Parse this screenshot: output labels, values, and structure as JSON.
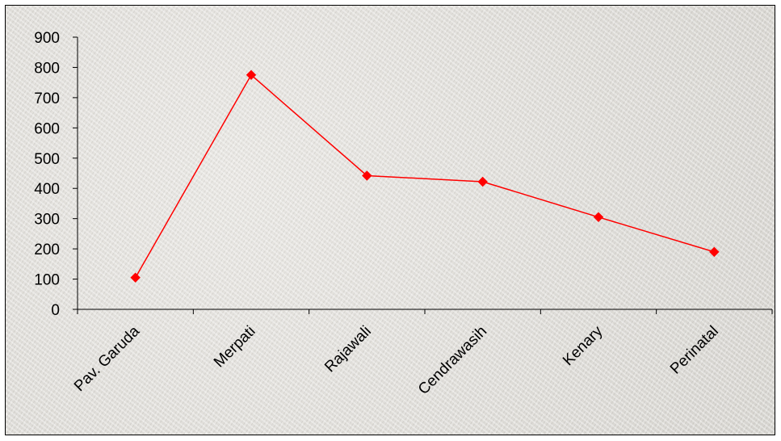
{
  "chart_data": {
    "type": "line",
    "title": "",
    "xlabel": "",
    "ylabel": "",
    "categories": [
      "Pav. Garuda",
      "Merpati",
      "Rajawali",
      "Cendrawasih",
      "Kenary",
      "Perinatal"
    ],
    "series": [
      {
        "values": [
          105,
          775,
          442,
          422,
          305,
          190
        ],
        "color": "#ff0000"
      }
    ],
    "ylim": [
      0,
      900
    ],
    "yticks": [
      "0",
      "100",
      "200",
      "300",
      "400",
      "500",
      "600",
      "700",
      "800",
      "900"
    ],
    "grid": false,
    "legend": "none"
  }
}
